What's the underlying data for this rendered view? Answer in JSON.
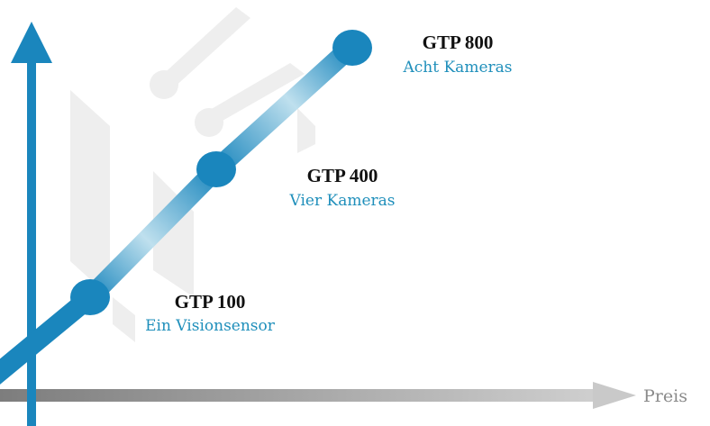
{
  "axis_label": "Preis",
  "products": [
    {
      "name": "GTP 100",
      "description": "Ein Visionsensor"
    },
    {
      "name": "GTP 400",
      "description": "Vier Kameras"
    },
    {
      "name": "GTP 800",
      "description": "Acht Kameras"
    }
  ]
}
